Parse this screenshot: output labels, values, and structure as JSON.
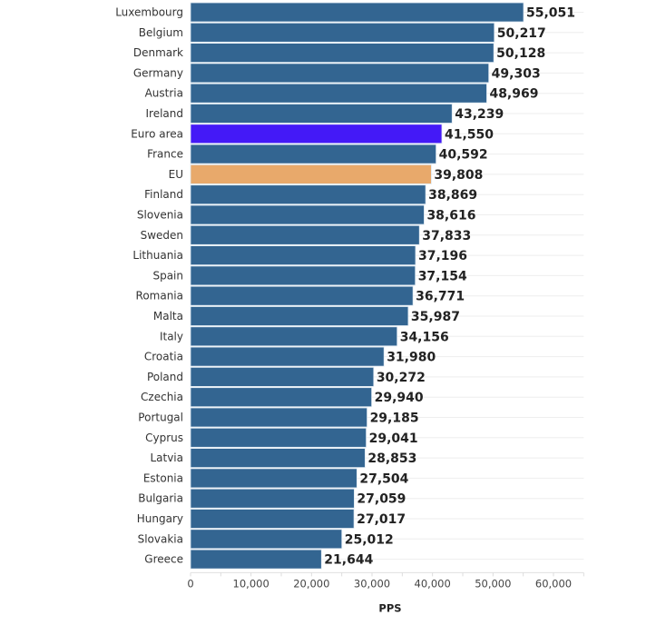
{
  "chart_data": {
    "type": "bar",
    "orientation": "horizontal",
    "categories": [
      "Luxembourg",
      "Belgium",
      "Denmark",
      "Germany",
      "Austria",
      "Ireland",
      "Euro area",
      "France",
      "EU",
      "Finland",
      "Slovenia",
      "Sweden",
      "Lithuania",
      "Spain",
      "Romania",
      "Malta",
      "Italy",
      "Croatia",
      "Poland",
      "Czechia",
      "Portugal",
      "Cyprus",
      "Latvia",
      "Estonia",
      "Bulgaria",
      "Hungary",
      "Slovakia",
      "Greece"
    ],
    "values": [
      55051,
      50217,
      50128,
      49303,
      48969,
      43239,
      41550,
      40592,
      39808,
      38869,
      38616,
      37833,
      37196,
      37154,
      36771,
      35987,
      34156,
      31980,
      30272,
      29940,
      29185,
      29041,
      28853,
      27504,
      27059,
      27017,
      25012,
      21644
    ],
    "value_labels": [
      "55,051",
      "50,217",
      "50,128",
      "49,303",
      "48,969",
      "43,239",
      "41,550",
      "40,592",
      "39,808",
      "38,869",
      "38,616",
      "37,833",
      "37,196",
      "37,154",
      "36,771",
      "35,987",
      "34,156",
      "31,980",
      "30,272",
      "29,940",
      "29,185",
      "29,041",
      "28,853",
      "27,504",
      "27,059",
      "27,017",
      "25,012",
      "21,644"
    ],
    "xlabel": "PPS",
    "ylabel": "",
    "xlim": [
      0,
      65000
    ],
    "x_ticks": [
      "0",
      "10,000",
      "20,000",
      "30,000",
      "40,000",
      "50,000",
      "60,000"
    ],
    "x_tick_values": [
      0,
      10000,
      20000,
      30000,
      40000,
      50000,
      60000
    ],
    "grid": true,
    "colors": {
      "default": "#336591",
      "Euro area": "#4419f7",
      "EU": "#e8a96b"
    }
  }
}
